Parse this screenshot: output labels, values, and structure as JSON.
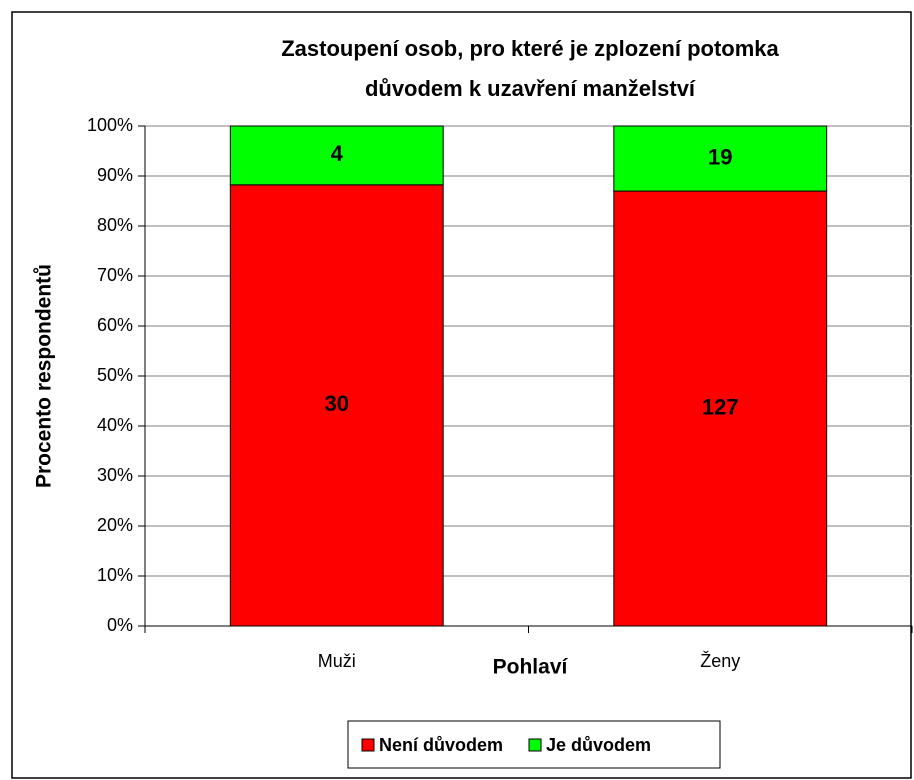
{
  "chart_data": {
    "type": "bar",
    "stack": "percent",
    "title": [
      "Zastoupení osob, pro které je zplození potomka",
      "důvodem k uzavření manželství"
    ],
    "x_label": "Pohlaví",
    "y_label": "Procento respondentů",
    "categories": [
      "Muži",
      "Ženy"
    ],
    "series": [
      {
        "name": "Není důvodem",
        "color": "#ff0000",
        "values": [
          30,
          127
        ]
      },
      {
        "name": "Je důvodem",
        "color": "#00ff00",
        "values": [
          4,
          19
        ]
      }
    ],
    "ylim": [
      0,
      100
    ],
    "yticks": [
      {
        "value": 0,
        "label": "0%"
      },
      {
        "value": 10,
        "label": "10%"
      },
      {
        "value": 20,
        "label": "20%"
      },
      {
        "value": 30,
        "label": "30%"
      },
      {
        "value": 40,
        "label": "40%"
      },
      {
        "value": 50,
        "label": "50%"
      },
      {
        "value": 60,
        "label": "60%"
      },
      {
        "value": 70,
        "label": "70%"
      },
      {
        "value": 80,
        "label": "80%"
      },
      {
        "value": 90,
        "label": "90%"
      },
      {
        "value": 100,
        "label": "100%"
      }
    ],
    "grid": true,
    "legend": "bottom"
  }
}
